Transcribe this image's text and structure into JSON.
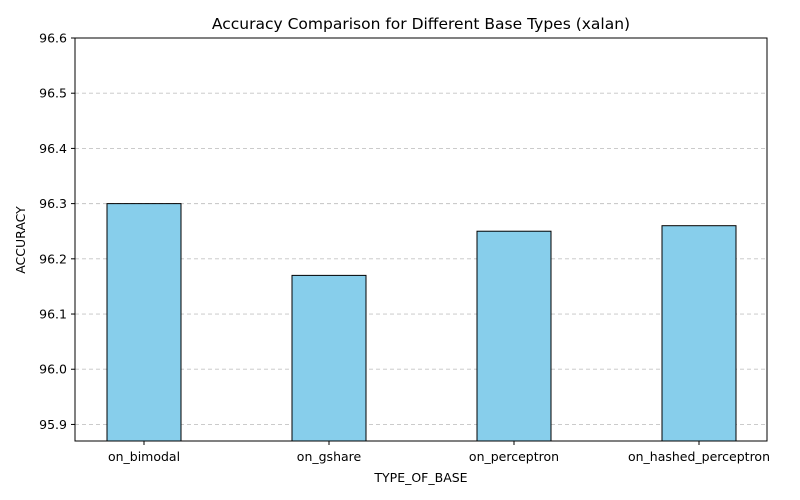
{
  "chart_data": {
    "type": "bar",
    "title": "Accuracy Comparison for Different Base Types (xalan)",
    "xlabel": "TYPE_OF_BASE",
    "ylabel": "ACCURACY",
    "categories": [
      "on_bimodal",
      "on_gshare",
      "on_perceptron",
      "on_hashed_perceptron"
    ],
    "values": [
      96.3,
      96.17,
      96.25,
      96.26
    ],
    "ylim": [
      95.87,
      96.6
    ],
    "yticks": [
      95.9,
      96.0,
      96.1,
      96.2,
      96.3,
      96.4,
      96.5,
      96.6
    ],
    "ytick_labels": [
      "95.9",
      "96.0",
      "96.1",
      "96.2",
      "96.3",
      "96.4",
      "96.5",
      "96.6"
    ],
    "grid": "y-dashed",
    "legend": "none",
    "colors": {
      "bar_fill": "#87ceeb",
      "bar_edge": "#000000",
      "grid": "#c4c4c4"
    }
  }
}
